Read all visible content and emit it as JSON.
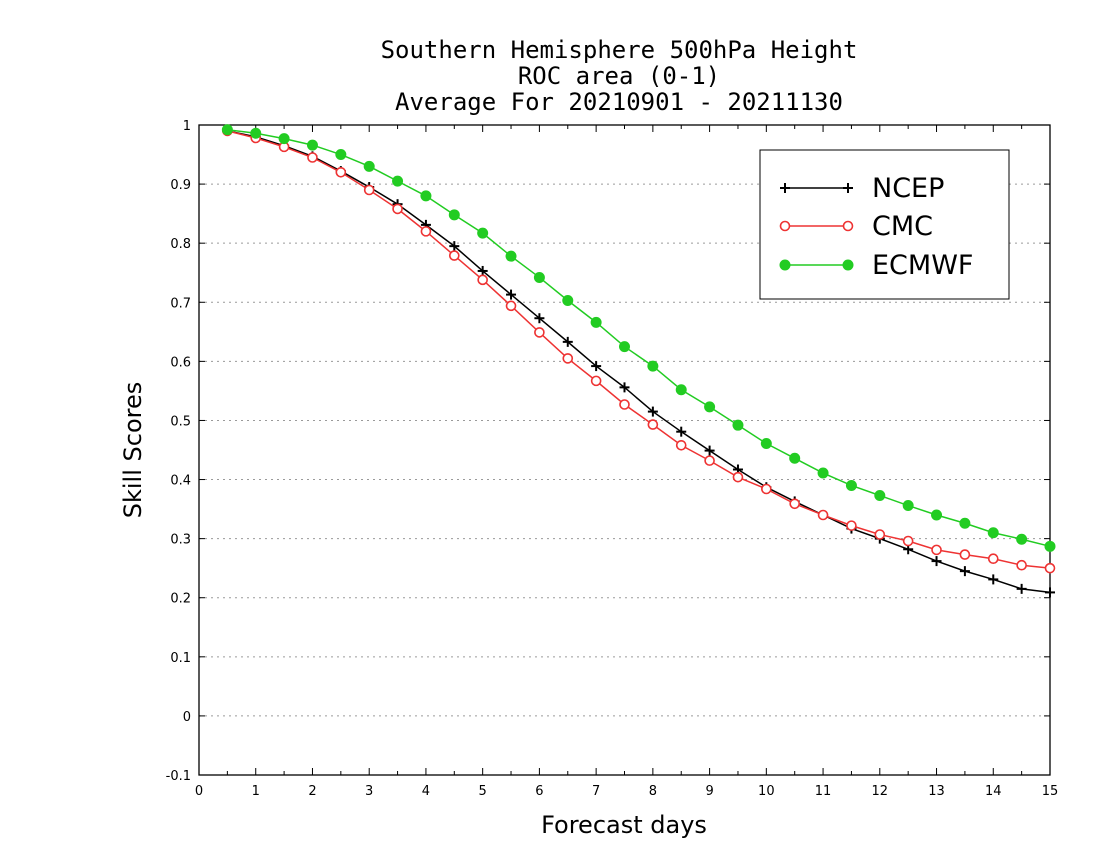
{
  "chart_data": {
    "type": "line",
    "title": [
      "Southern Hemisphere 500hPa Height",
      "ROC area (0-1)",
      "Average For 20210901 - 20211130"
    ],
    "xlabel": "Forecast days",
    "ylabel": "Skill Scores",
    "xlim": [
      0,
      15
    ],
    "ylim": [
      -0.1,
      1
    ],
    "xticks": [
      "0",
      "1",
      "2",
      "3",
      "4",
      "5",
      "6",
      "7",
      "8",
      "9",
      "10",
      "11",
      "12",
      "13",
      "14",
      "15"
    ],
    "yticks": [
      "-0.1",
      "0",
      "0.1",
      "0.2",
      "0.3",
      "0.4",
      "0.5",
      "0.6",
      "0.7",
      "0.8",
      "0.9",
      "1"
    ],
    "grid": "horizontal dotted",
    "legend_position": "top-right",
    "x": [
      0.5,
      1,
      1.5,
      2,
      2.5,
      3,
      3.5,
      4,
      4.5,
      5,
      5.5,
      6,
      6.5,
      7,
      7.5,
      8,
      8.5,
      9,
      9.5,
      10,
      10.5,
      11,
      11.5,
      12,
      12.5,
      13,
      13.5,
      14,
      14.5,
      15
    ],
    "series": [
      {
        "name": "NCEP",
        "color": "#000000",
        "marker": "plus",
        "values": [
          0.99,
          0.98,
          0.965,
          0.947,
          0.922,
          0.895,
          0.866,
          0.831,
          0.795,
          0.753,
          0.713,
          0.673,
          0.633,
          0.592,
          0.556,
          0.515,
          0.481,
          0.449,
          0.417,
          0.387,
          0.363,
          0.34,
          0.317,
          0.3,
          0.282,
          0.262,
          0.245,
          0.231,
          0.215,
          0.209
        ]
      },
      {
        "name": "CMC",
        "color": "#ee3333",
        "marker": "open-circle",
        "values": [
          0.99,
          0.978,
          0.963,
          0.945,
          0.92,
          0.89,
          0.858,
          0.82,
          0.779,
          0.738,
          0.694,
          0.649,
          0.605,
          0.567,
          0.527,
          0.493,
          0.458,
          0.432,
          0.404,
          0.384,
          0.359,
          0.34,
          0.322,
          0.307,
          0.296,
          0.281,
          0.273,
          0.266,
          0.255,
          0.25
        ]
      },
      {
        "name": "ECMWF",
        "color": "#22cc22",
        "marker": "filled-circle",
        "values": [
          0.992,
          0.986,
          0.977,
          0.966,
          0.95,
          0.93,
          0.905,
          0.88,
          0.848,
          0.817,
          0.778,
          0.742,
          0.703,
          0.666,
          0.625,
          0.592,
          0.552,
          0.523,
          0.492,
          0.461,
          0.436,
          0.411,
          0.39,
          0.373,
          0.356,
          0.34,
          0.326,
          0.31,
          0.299,
          0.287
        ]
      }
    ]
  }
}
